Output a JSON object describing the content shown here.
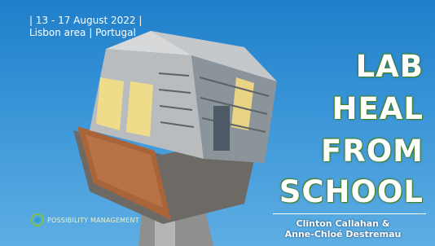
{
  "header": {
    "dates": "| 13 - 17 August 2022 |",
    "location": "Lisbon area | Portugal"
  },
  "title": {
    "lines": [
      "LAB",
      "HEAL",
      "FROM",
      "SCHOOL"
    ]
  },
  "authors": {
    "lines": [
      "Clinton Callahan &",
      "Anne-Chloé Destremau"
    ]
  },
  "logo": {
    "text": "POSSIBILITY MANAGEMENT"
  }
}
